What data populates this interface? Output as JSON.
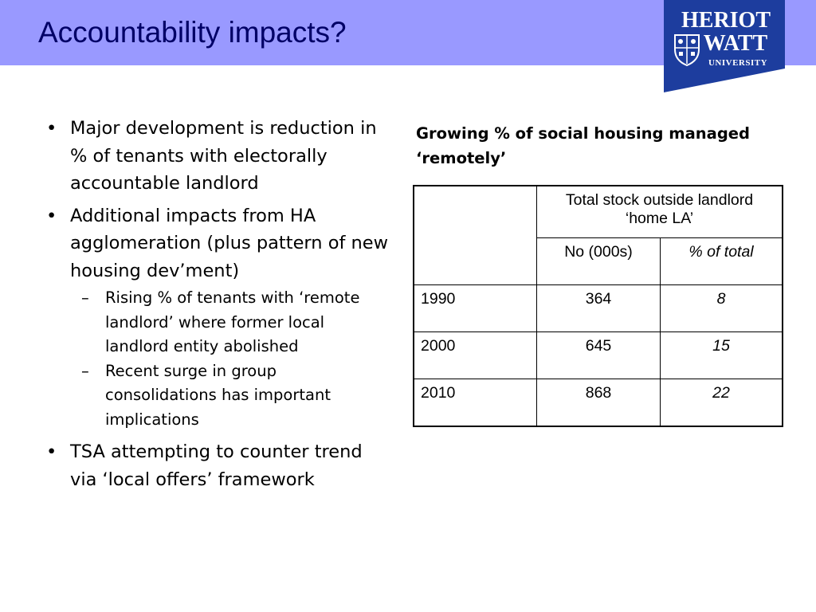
{
  "header": {
    "title": "Accountability impacts?",
    "logo": {
      "line1": "HERIOT",
      "line2": "WATT",
      "line3": "UNIVERSITY",
      "bg_color": "#1d3d9e"
    },
    "bar_color": "#9999ff",
    "title_color": "#000066"
  },
  "bullets": {
    "item1": "Major development is reduction in % of tenants with electorally accountable landlord",
    "item2": "Additional impacts from HA agglomeration (plus pattern of new housing dev’ment)",
    "sub1": "Rising % of tenants with ‘remote landlord’ where former local landlord entity abolished",
    "sub2": "Recent surge in group consolidations has important implications",
    "item3": "TSA attempting to counter trend via ‘local offers’ framework",
    "bullet_char": "•",
    "dash_char": "–"
  },
  "table": {
    "title": "Growing % of social housing managed ‘remotely’",
    "group_header": "Total stock outside landlord ‘home LA’",
    "col1_header": "No (000s)",
    "col2_header": "% of total",
    "rows": [
      {
        "year": "1990",
        "no": "364",
        "pct": "8"
      },
      {
        "year": "2000",
        "no": "645",
        "pct": "15"
      },
      {
        "year": "2010",
        "no": "868",
        "pct": "22"
      }
    ]
  }
}
